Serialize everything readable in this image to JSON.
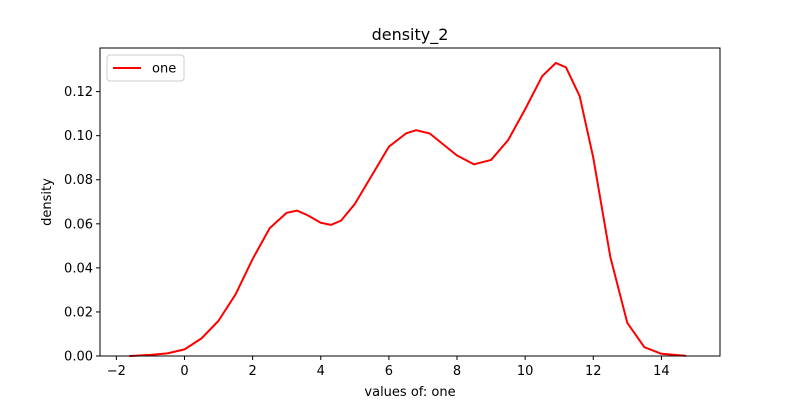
{
  "chart_data": {
    "type": "line",
    "title": "density_2",
    "xlabel": "values of: one",
    "ylabel": "density",
    "xlim": [
      -2.48,
      15.72
    ],
    "ylim": [
      0,
      0.1398
    ],
    "x_ticks": [
      -2,
      0,
      2,
      4,
      6,
      8,
      10,
      12,
      14
    ],
    "y_ticks": [
      0.0,
      0.02,
      0.04,
      0.06,
      0.08,
      0.1,
      0.12
    ],
    "y_tick_labels": [
      "0.00",
      "0.02",
      "0.04",
      "0.06",
      "0.08",
      "0.10",
      "0.12"
    ],
    "x_tick_labels": [
      "−2",
      "0",
      "2",
      "4",
      "6",
      "8",
      "10",
      "12",
      "14"
    ],
    "grid": false,
    "legend": {
      "placement": "top-left",
      "entries": [
        "one"
      ]
    },
    "series": [
      {
        "name": "one",
        "color": "#ff0000",
        "x": [
          -1.6,
          -1.0,
          -0.5,
          0.0,
          0.5,
          1.0,
          1.5,
          2.0,
          2.5,
          3.0,
          3.3,
          3.6,
          4.0,
          4.3,
          4.6,
          5.0,
          5.5,
          6.0,
          6.5,
          6.8,
          7.2,
          7.6,
          8.0,
          8.5,
          9.0,
          9.5,
          10.0,
          10.5,
          10.9,
          11.2,
          11.6,
          12.0,
          12.5,
          13.0,
          13.5,
          14.0,
          14.7
        ],
        "y": [
          0.0,
          0.0005,
          0.0012,
          0.003,
          0.008,
          0.016,
          0.028,
          0.044,
          0.058,
          0.065,
          0.066,
          0.064,
          0.0605,
          0.0595,
          0.0615,
          0.069,
          0.082,
          0.095,
          0.101,
          0.1025,
          0.101,
          0.096,
          0.091,
          0.087,
          0.089,
          0.098,
          0.112,
          0.127,
          0.133,
          0.131,
          0.118,
          0.09,
          0.045,
          0.015,
          0.004,
          0.001,
          0.0001
        ]
      }
    ]
  }
}
